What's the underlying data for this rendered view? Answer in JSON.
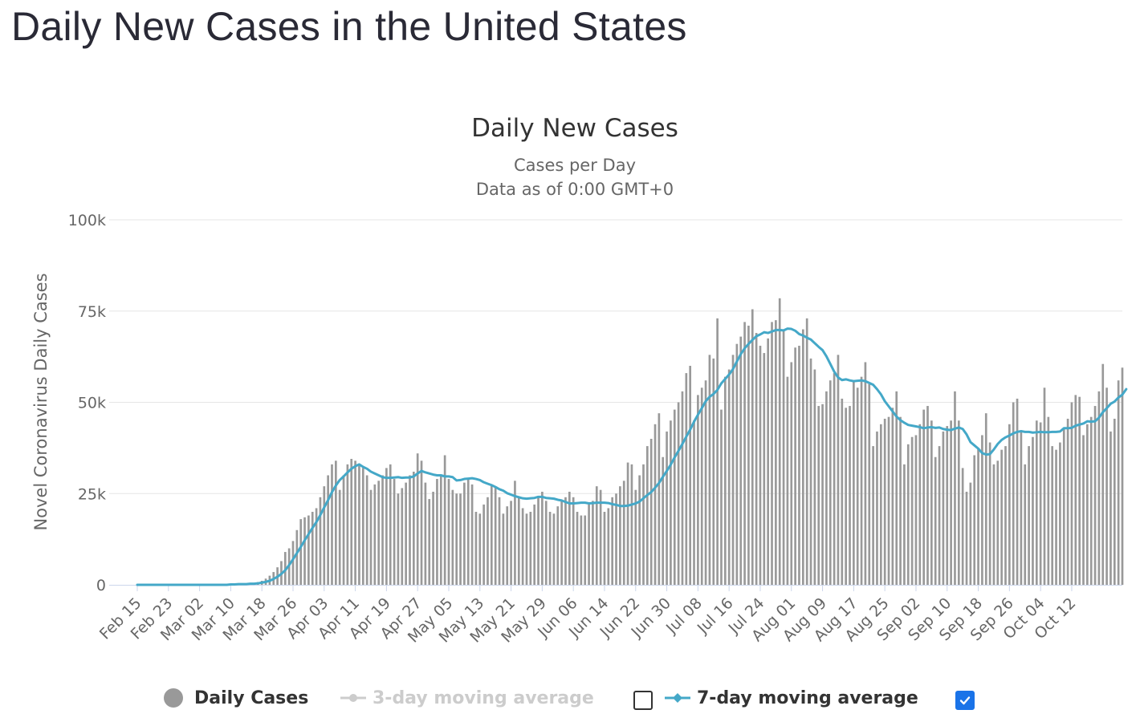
{
  "page": {
    "heading": "Daily New Cases in the United States"
  },
  "chart_data": {
    "type": "bar",
    "title": "Daily New Cases",
    "subtitle_lines": [
      "Cases per Day",
      "Data as of 0:00 GMT+0"
    ],
    "ylabel": "Novel Coronavirus Daily Cases",
    "xlabel": "",
    "ylim": [
      0,
      100000
    ],
    "yticks": [
      {
        "value": 0,
        "label": "0"
      },
      {
        "value": 25000,
        "label": "25k"
      },
      {
        "value": 50000,
        "label": "50k"
      },
      {
        "value": 75000,
        "label": "75k"
      },
      {
        "value": 100000,
        "label": "100k"
      }
    ],
    "x_tick_labels": [
      "Feb 15",
      "Feb 23",
      "Mar 02",
      "Mar 10",
      "Mar 18",
      "Mar 26",
      "Apr 03",
      "Apr 11",
      "Apr 19",
      "Apr 27",
      "May 05",
      "May 13",
      "May 21",
      "May 29",
      "Jun 06",
      "Jun 14",
      "Jun 22",
      "Jun 30",
      "Jul 08",
      "Jul 16",
      "Jul 24",
      "Aug 01",
      "Aug 09",
      "Aug 17",
      "Aug 25",
      "Sep 02",
      "Sep 10",
      "Sep 18",
      "Sep 26",
      "Oct 04",
      "Oct 12"
    ],
    "start_label": "Feb 15",
    "grid": true,
    "legend_position": "bottom",
    "colors": {
      "bars": "#999999",
      "ma7": "#44a8c8",
      "ma3": "#cccccc",
      "grid": "#e6e6e6",
      "axis": "#ccd6eb"
    },
    "series": [
      {
        "name": "Daily Cases",
        "kind": "bar",
        "values": [
          0,
          0,
          0,
          0,
          0,
          0,
          0,
          0,
          0,
          0,
          0,
          0,
          0,
          0,
          0,
          20,
          0,
          25,
          0,
          30,
          45,
          60,
          75,
          100,
          120,
          150,
          200,
          270,
          330,
          450,
          550,
          750,
          1100,
          1700,
          2500,
          3500,
          4800,
          6500,
          9000,
          10000,
          12000,
          15000,
          18000,
          18500,
          19000,
          20000,
          21000,
          24000,
          27000,
          30000,
          33000,
          34000,
          26000,
          30000,
          33000,
          34500,
          34000,
          33000,
          32000,
          30000,
          26000,
          27500,
          28500,
          30000,
          32000,
          33000,
          29000,
          25000,
          26500,
          28000,
          30000,
          31000,
          36000,
          34000,
          28000,
          23500,
          25500,
          29000,
          30000,
          35500,
          29000,
          26000,
          25000,
          25000,
          28000,
          29000,
          27500,
          20000,
          19500,
          22000,
          24000,
          27500,
          27000,
          24000,
          19500,
          21500,
          23000,
          28500,
          24000,
          21000,
          19500,
          20000,
          22000,
          24000,
          25500,
          23000,
          20000,
          19500,
          21500,
          23000,
          24000,
          25500,
          24000,
          20000,
          19000,
          19000,
          22000,
          23000,
          27000,
          26000,
          20000,
          21000,
          24000,
          25000,
          27000,
          28500,
          33500,
          33000,
          26000,
          30000,
          33000,
          38000,
          40000,
          44000,
          47000,
          35000,
          42000,
          45000,
          48000,
          50000,
          53000,
          58000,
          60000,
          45000,
          52000,
          54000,
          56000,
          63000,
          62000,
          73000,
          48000,
          57000,
          59000,
          63000,
          66000,
          68000,
          72000,
          71000,
          75500,
          69000,
          65500,
          63500,
          67500,
          72000,
          72500,
          78500,
          69500,
          57000,
          61000,
          65000,
          65500,
          70000,
          73000,
          62000,
          59000,
          49000,
          49500,
          53000,
          56000,
          58000,
          63000,
          51000,
          48500,
          49000,
          55500,
          54000,
          57000,
          61000,
          55000,
          38000,
          42000,
          44000,
          45500,
          46000,
          48500,
          53000,
          46000,
          33000,
          38500,
          40500,
          41000,
          44000,
          48000,
          49000,
          45000,
          35000,
          38000,
          42000,
          43500,
          45000,
          53000,
          45000,
          32000,
          25500,
          28000,
          35500,
          37500,
          41000,
          47000,
          39000,
          33000,
          34000,
          37000,
          38000,
          44000,
          50000,
          51000,
          42000,
          33000,
          38000,
          40500,
          45000,
          44500,
          54000,
          46000,
          38000,
          37000,
          39000,
          43000,
          45500,
          50000,
          52000,
          51500,
          41000,
          44000,
          46000,
          49000,
          53000,
          60500,
          54000,
          42000,
          45500,
          56000,
          59500
        ]
      },
      {
        "name": "7-day moving average",
        "kind": "line",
        "values": [
          0,
          0,
          0,
          0,
          0,
          0,
          0,
          0,
          0,
          0,
          0,
          0,
          0,
          0,
          0,
          0,
          0,
          0,
          0,
          0,
          0,
          0,
          0,
          0,
          100,
          100,
          200,
          200,
          200,
          300,
          300,
          400,
          600,
          800,
          1100,
          1600,
          2200,
          3000,
          4000,
          5400,
          7000,
          8700,
          10400,
          12200,
          13900,
          15600,
          17200,
          19100,
          21200,
          23200,
          25400,
          27200,
          28700,
          29700,
          30800,
          31800,
          32500,
          33000,
          32300,
          31800,
          31000,
          30500,
          30000,
          29500,
          29300,
          29300,
          29400,
          29500,
          29300,
          29400,
          29400,
          29700,
          30500,
          31200,
          30800,
          30500,
          30200,
          30000,
          30000,
          29700,
          29700,
          29500,
          28600,
          28700,
          29000,
          29100,
          29200,
          29000,
          28700,
          28100,
          27700,
          27300,
          26800,
          26200,
          25800,
          25100,
          24700,
          24300,
          24000,
          23700,
          23600,
          23700,
          23800,
          24100,
          24100,
          23800,
          23700,
          23600,
          23300,
          23100,
          22700,
          22300,
          22300,
          22400,
          22500,
          22500,
          22300,
          22400,
          22500,
          22500,
          22500,
          22400,
          22100,
          21900,
          21600,
          21600,
          21700,
          22000,
          22300,
          22800,
          23700,
          24600,
          25400,
          26600,
          27900,
          29600,
          31200,
          32900,
          34900,
          36700,
          38600,
          40600,
          42500,
          44700,
          46600,
          48400,
          50300,
          51500,
          52300,
          53400,
          55200,
          56400,
          57600,
          59100,
          61200,
          63200,
          64800,
          66000,
          67100,
          68100,
          68600,
          69200,
          69000,
          69400,
          69800,
          69800,
          69700,
          70200,
          70100,
          69600,
          68700,
          68300,
          67700,
          67200,
          66200,
          65200,
          64300,
          62600,
          60500,
          58400,
          56800,
          56100,
          56300,
          56000,
          55800,
          55900,
          56000,
          55800,
          55300,
          54800,
          53600,
          52200,
          50300,
          48900,
          47500,
          46100,
          45100,
          44400,
          43800,
          43600,
          43400,
          43200,
          42900,
          43100,
          43200,
          43000,
          43100,
          42700,
          42500,
          42400,
          42800,
          43100,
          42700,
          41200,
          39100,
          38200,
          37300,
          36100,
          35700,
          35800,
          37100,
          38600,
          39700,
          40400,
          40900,
          41500,
          41900,
          42100,
          41900,
          41900,
          41700,
          41800,
          41900,
          41800,
          41800,
          41900,
          41900,
          42000,
          42900,
          42900,
          43000,
          43600,
          43900,
          44200,
          44800,
          44700,
          44800,
          45800,
          47300,
          48400,
          49600,
          50200,
          51300,
          52100,
          53600
        ]
      },
      {
        "name": "3-day moving average",
        "kind": "line",
        "visible": false
      }
    ]
  },
  "legend": {
    "items": [
      {
        "label": "Daily Cases"
      },
      {
        "label": "3-day moving average"
      },
      {
        "label": "7-day moving average"
      }
    ]
  }
}
